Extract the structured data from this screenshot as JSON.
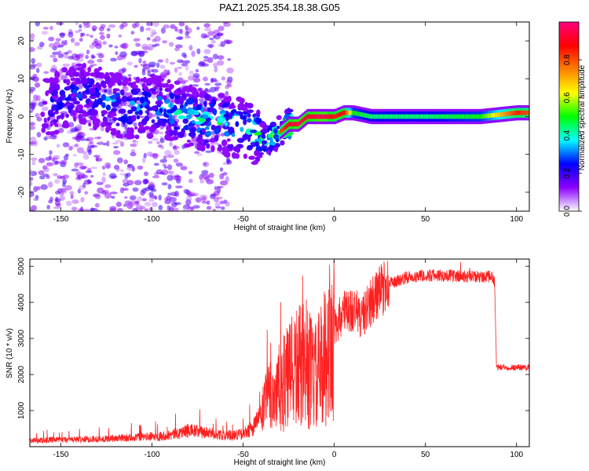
{
  "title": "PAZ1.2025.354.18.38.G05",
  "chart_data": [
    {
      "type": "heatmap",
      "name": "spectrogram",
      "xlabel": "Height of straight line (km)",
      "ylabel": "Frequency (Hz)",
      "xlim": [
        -167,
        107
      ],
      "ylim": [
        -25,
        25
      ],
      "xticks": [
        -150,
        -100,
        -50,
        0,
        50,
        100
      ],
      "yticks": [
        -20,
        -10,
        0,
        10,
        20
      ],
      "colorbar": {
        "label": "Normalized spectral amplitude",
        "range": [
          0,
          1
        ],
        "ticks": [
          "0.0",
          "0.2",
          "0.4",
          "0.6",
          "0.8"
        ],
        "colors": [
          "#ffffff",
          "#8b00ff",
          "#0000ff",
          "#00ffff",
          "#00ff00",
          "#ffff00",
          "#ff8000",
          "#ff0000",
          "#ff0080"
        ]
      },
      "ridge": {
        "x": [
          -155,
          -140,
          -130,
          -120,
          -110,
          -100,
          -90,
          -80,
          -70,
          -60,
          -50,
          -45,
          -40,
          -35,
          -30,
          -25,
          -20,
          -15,
          -10,
          -5,
          0,
          5,
          10,
          20,
          50,
          80,
          100,
          107
        ],
        "freq": [
          3,
          6,
          5,
          3,
          2,
          3,
          2,
          0,
          -1,
          -2,
          -3,
          -4,
          -6,
          -6,
          -4,
          -2,
          -2,
          0,
          0,
          0,
          0,
          1,
          1,
          0,
          0,
          0,
          1,
          1
        ],
        "amplitude": [
          0.3,
          0.35,
          0.35,
          0.4,
          0.4,
          0.4,
          0.45,
          0.45,
          0.5,
          0.5,
          0.5,
          0.55,
          0.6,
          0.6,
          0.8,
          0.9,
          0.95,
          0.9,
          0.95,
          0.95,
          0.85,
          0.9,
          0.5,
          0.45,
          0.45,
          0.5,
          0.85,
          0.8
        ]
      }
    },
    {
      "type": "line",
      "name": "snr",
      "xlabel": "Height of straight line (km)",
      "ylabel": "SNR (10 * v/v)",
      "xlim": [
        -167,
        107
      ],
      "ylim": [
        0,
        5200
      ],
      "xticks": [
        -150,
        -100,
        -50,
        0,
        50,
        100
      ],
      "yticks": [
        1000,
        2000,
        3000,
        4000,
        5000
      ],
      "color": "#ff2020",
      "envelope": {
        "x": [
          -167,
          -140,
          -120,
          -100,
          -90,
          -80,
          -70,
          -60,
          -50,
          -45,
          -40,
          -35,
          -30,
          -25,
          -20,
          -15,
          -10,
          -5,
          0,
          5,
          10,
          15,
          20,
          25,
          30,
          40,
          50,
          60,
          70,
          80,
          87,
          88,
          89,
          95,
          100,
          107
        ],
        "y": [
          170,
          200,
          230,
          280,
          320,
          450,
          380,
          300,
          350,
          500,
          900,
          1400,
          1600,
          1900,
          2200,
          2200,
          1900,
          2500,
          3300,
          3700,
          3800,
          3600,
          4000,
          4300,
          4500,
          4700,
          4750,
          4750,
          4720,
          4700,
          4700,
          4500,
          2200,
          2200,
          2200,
          2200
        ]
      }
    }
  ]
}
